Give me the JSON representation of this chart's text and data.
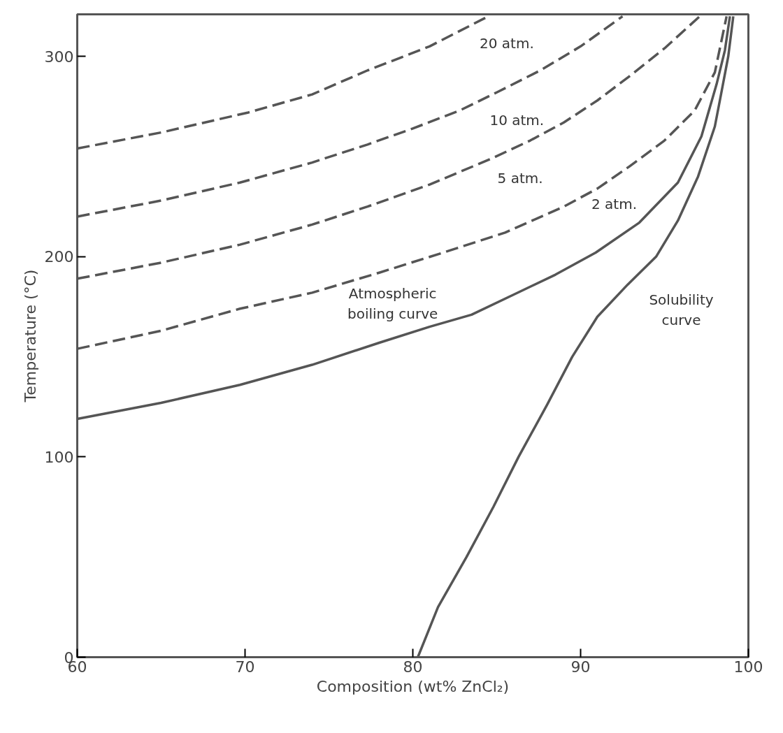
{
  "chart_data": {
    "type": "line",
    "xlabel": "Composition (wt% ZnCl₂)",
    "ylabel": "Temperature (°C)",
    "xlim": [
      60,
      100
    ],
    "ylim": [
      0,
      321
    ],
    "xticks": [
      60,
      70,
      80,
      90,
      100
    ],
    "yticks": [
      0,
      100,
      200,
      300
    ],
    "grid": false,
    "series": [
      {
        "color": "#555555",
        "line_style": "dashed",
        "x": [
          60,
          65,
          70.2,
          74,
          77.3,
          81,
          84.5
        ],
        "values": [
          254,
          262,
          272,
          281,
          293,
          305,
          320
        ]
      },
      {
        "color": "#555555",
        "line_style": "dashed",
        "x": [
          60,
          65,
          69.7,
          74,
          77.3,
          80,
          82.8,
          85,
          87.6,
          90,
          92.5
        ],
        "values": [
          220,
          228,
          237,
          247,
          256,
          264,
          273,
          282,
          293,
          305,
          320
        ]
      },
      {
        "color": "#555555",
        "line_style": "dashed",
        "x": [
          60,
          65,
          69.7,
          74,
          77.3,
          81,
          84.7,
          87,
          89,
          91,
          92.9,
          95,
          97.1
        ],
        "values": [
          189,
          197,
          206,
          216,
          225,
          236,
          249,
          258,
          267,
          278,
          290,
          304,
          320
        ]
      },
      {
        "color": "#555555",
        "line_style": "dashed",
        "x": [
          60,
          65,
          69.7,
          74,
          78,
          81.8,
          85.5,
          89,
          91,
          92.9,
          95,
          96.8,
          98,
          98.7
        ],
        "values": [
          154,
          163,
          174,
          182,
          192,
          202,
          212,
          225,
          234,
          245,
          258,
          273,
          292,
          320
        ]
      },
      {
        "color": "#555555",
        "line_style": "solid",
        "x": [
          60,
          65,
          69.7,
          74,
          78,
          81,
          83.5,
          86,
          88.5,
          90.9,
          93.5,
          95.8,
          97.2,
          98.1,
          98.6,
          98.9
        ],
        "values": [
          119,
          127,
          136,
          146,
          157,
          165,
          171,
          181,
          191,
          202,
          217,
          237,
          260,
          286,
          303,
          320
        ]
      },
      {
        "color": "#555555",
        "line_style": "solid",
        "x": [
          80.3,
          81.5,
          83.2,
          84.8,
          86.3,
          88,
          89.5,
          91,
          92.8,
          94.5,
          95.8,
          97,
          98,
          98.3,
          98.8,
          99.1
        ],
        "values": [
          0,
          25,
          50,
          75,
          100,
          126,
          150,
          170,
          186,
          200,
          218,
          240,
          265,
          278,
          300,
          320
        ]
      }
    ],
    "annotations": [
      "20 atm.",
      "10 atm.",
      "5 atm.",
      "2 atm.",
      "Atmospheric\nboiling curve",
      "Solubility\ncurve"
    ]
  }
}
